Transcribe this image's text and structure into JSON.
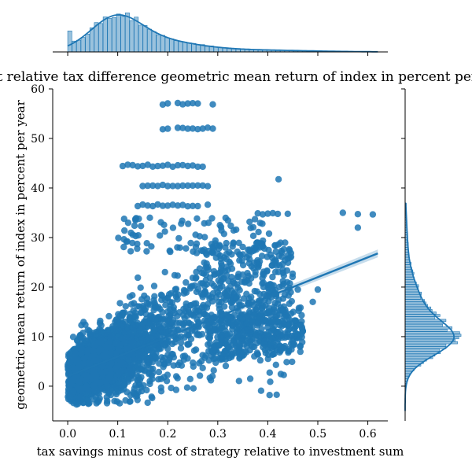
{
  "chart_data": {
    "type": "scatter",
    "title": "Jointplot relative tax difference geometric mean return of index in percent per year",
    "xlabel": "tax savings minus cost of strategy relative to investment sum",
    "ylabel": "geometric mean return of index in percent per year",
    "xlim": [
      -0.03,
      0.64
    ],
    "ylim": [
      -7,
      60
    ],
    "x_ticks": [
      "0.0",
      "0.1",
      "0.2",
      "0.3",
      "0.4",
      "0.5",
      "0.6"
    ],
    "y_ticks": [
      "0",
      "10",
      "20",
      "30",
      "40",
      "50",
      "60"
    ],
    "x_tick_values": [
      0.0,
      0.1,
      0.2,
      0.3,
      0.4,
      0.5,
      0.6
    ],
    "y_tick_values": [
      0,
      10,
      20,
      30,
      40,
      50,
      60
    ],
    "grid": false,
    "series_color": "#1f77b4",
    "regression_line": {
      "x": [
        0.0,
        0.62
      ],
      "y": [
        2.0,
        26.8
      ]
    },
    "outlier_clusters": [
      {
        "x": [
          0.19,
          0.2,
          0.22,
          0.23,
          0.24,
          0.25,
          0.26,
          0.29
        ],
        "y": 57.0
      },
      {
        "x": [
          0.19,
          0.2,
          0.22,
          0.23,
          0.24,
          0.25,
          0.26,
          0.27,
          0.28,
          0.29
        ],
        "y": 52.0
      },
      {
        "x": [
          0.11,
          0.12,
          0.13,
          0.14,
          0.15,
          0.16,
          0.17,
          0.18,
          0.19,
          0.2,
          0.21,
          0.22,
          0.23,
          0.24,
          0.25,
          0.26,
          0.27
        ],
        "y": 44.5
      },
      {
        "x": [
          0.15,
          0.16,
          0.17,
          0.18,
          0.19,
          0.2,
          0.21,
          0.22,
          0.23,
          0.24,
          0.25,
          0.26,
          0.27,
          0.28
        ],
        "y": 40.5
      },
      {
        "x": [
          0.14,
          0.15,
          0.16,
          0.17,
          0.18,
          0.19,
          0.2,
          0.21,
          0.22,
          0.23,
          0.24,
          0.25,
          0.26,
          0.28
        ],
        "y": 36.5
      },
      {
        "x": [
          0.38,
          0.39,
          0.4,
          0.41,
          0.42,
          0.44,
          0.55,
          0.58,
          0.61
        ],
        "y": 34.8
      }
    ],
    "upper_points": [
      {
        "x": 0.58,
        "y": 32.0
      },
      {
        "x": 0.46,
        "y": 19.5
      },
      {
        "x": 0.5,
        "y": 19.5
      },
      {
        "x": 0.49,
        "y": 17.0
      },
      {
        "x": 0.44,
        "y": 14.0
      },
      {
        "x": 0.42,
        "y": 13.0
      }
    ],
    "x_marginal": {
      "type": "histogram+kde",
      "peak_x": 0.095,
      "range": [
        0.0,
        0.62
      ]
    },
    "y_marginal": {
      "type": "histogram+kde",
      "peak_y": 9.5,
      "range": [
        -4,
        37
      ]
    }
  }
}
